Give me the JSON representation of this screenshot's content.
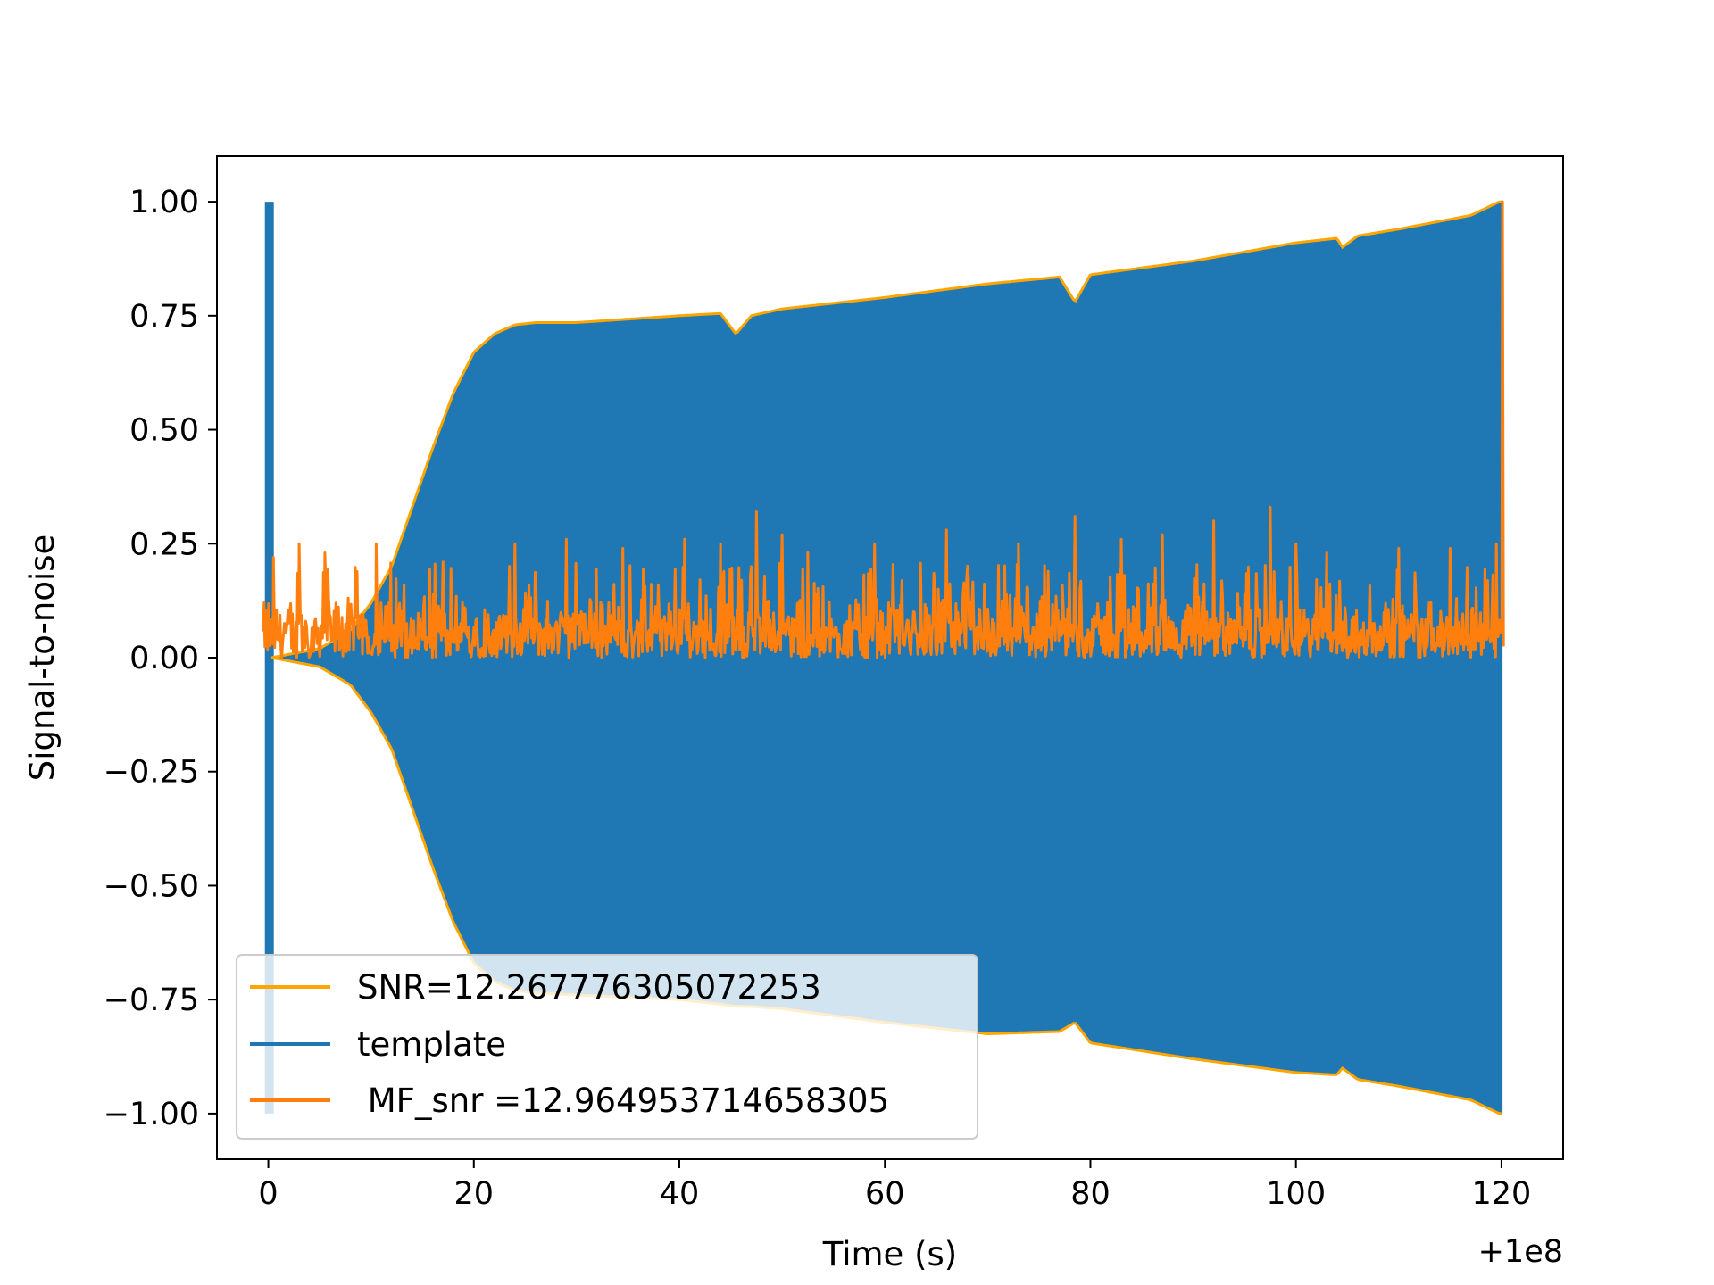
{
  "chart_data": {
    "type": "line",
    "title": "",
    "xlabel": "Time (s)",
    "ylabel": "Signal-to-noise",
    "x_offset_label": "+1e8",
    "xlim": [
      -5,
      126
    ],
    "ylim": [
      -1.1,
      1.1
    ],
    "x_ticks": [
      0,
      20,
      40,
      60,
      80,
      100,
      120
    ],
    "x_tick_labels": [
      "0",
      "20",
      "40",
      "60",
      "80",
      "100",
      "120"
    ],
    "y_ticks": [
      1.0,
      0.75,
      0.5,
      0.25,
      0.0,
      -0.25,
      -0.5,
      -0.75,
      -1.0
    ],
    "y_tick_labels": [
      "1.00",
      "0.75",
      "0.50",
      "0.25",
      "0.00",
      "−0.25",
      "−0.50",
      "−0.75",
      "−1.00"
    ],
    "grid": false,
    "legend_position": "lower-left",
    "series": [
      {
        "name": "SNR=12.267776305072253",
        "color": "#FFA500",
        "style": "envelope",
        "x": [
          0.3,
          5,
          8,
          10,
          12,
          14,
          16,
          18,
          20,
          22,
          24,
          26,
          30,
          40,
          44,
          45.5,
          47,
          50,
          60,
          70,
          77,
          78.5,
          80,
          90,
          100,
          104,
          104.5,
          106,
          110,
          117,
          119.8,
          120.1
        ],
        "upper": [
          0.0,
          0.02,
          0.06,
          0.12,
          0.2,
          0.33,
          0.46,
          0.58,
          0.67,
          0.71,
          0.73,
          0.735,
          0.735,
          0.75,
          0.755,
          0.71,
          0.75,
          0.765,
          0.79,
          0.82,
          0.835,
          0.78,
          0.84,
          0.87,
          0.91,
          0.92,
          0.9,
          0.925,
          0.94,
          0.97,
          1.0,
          1.0
        ],
        "lower": [
          0.0,
          -0.02,
          -0.06,
          -0.12,
          -0.2,
          -0.33,
          -0.46,
          -0.58,
          -0.67,
          -0.71,
          -0.73,
          -0.735,
          -0.74,
          -0.75,
          -0.76,
          -0.765,
          -0.765,
          -0.77,
          -0.8,
          -0.825,
          -0.82,
          -0.8,
          -0.845,
          -0.88,
          -0.91,
          -0.915,
          -0.9,
          -0.925,
          -0.94,
          -0.97,
          -1.0,
          -1.0
        ]
      },
      {
        "name": "template",
        "color": "#1F77B4",
        "style": "filled-oscillation",
        "spike": {
          "x": 0.1,
          "ymin": -1.0,
          "ymax": 1.0
        }
      },
      {
        "name": " MF_snr =12.964953714658305",
        "color": "#FF7F0E",
        "style": "noise",
        "x_range": [
          -0.5,
          120.2
        ],
        "baseline_range": [
          0.0,
          0.15
        ],
        "peaks": [
          {
            "x": 0.5,
            "y": 0.22
          },
          {
            "x": 3,
            "y": 0.25
          },
          {
            "x": 5.5,
            "y": 0.23
          },
          {
            "x": 10.5,
            "y": 0.25
          },
          {
            "x": 17,
            "y": 0.21
          },
          {
            "x": 24,
            "y": 0.25
          },
          {
            "x": 29,
            "y": 0.26
          },
          {
            "x": 34.5,
            "y": 0.24
          },
          {
            "x": 40.5,
            "y": 0.26
          },
          {
            "x": 44,
            "y": 0.25
          },
          {
            "x": 47.5,
            "y": 0.32
          },
          {
            "x": 50,
            "y": 0.27
          },
          {
            "x": 52.5,
            "y": 0.23
          },
          {
            "x": 59,
            "y": 0.25
          },
          {
            "x": 66,
            "y": 0.28
          },
          {
            "x": 73,
            "y": 0.25
          },
          {
            "x": 78.5,
            "y": 0.31
          },
          {
            "x": 83,
            "y": 0.26
          },
          {
            "x": 87,
            "y": 0.27
          },
          {
            "x": 92,
            "y": 0.3
          },
          {
            "x": 97.5,
            "y": 0.33
          },
          {
            "x": 100,
            "y": 0.25
          },
          {
            "x": 103,
            "y": 0.23
          },
          {
            "x": 110,
            "y": 0.24
          },
          {
            "x": 115,
            "y": 0.24
          },
          {
            "x": 119.5,
            "y": 0.25
          },
          {
            "x": 120.1,
            "y": 1.0
          }
        ]
      }
    ]
  }
}
